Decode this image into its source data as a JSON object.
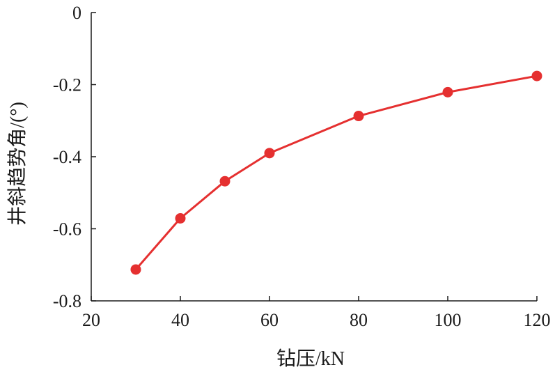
{
  "chart_data": {
    "type": "line",
    "xlabel": "钻压/kN",
    "ylabel": "井斜趋势角/(°)",
    "xlim": [
      20,
      120
    ],
    "ylim": [
      -0.8,
      0
    ],
    "xticks": [
      20,
      40,
      60,
      80,
      100,
      120
    ],
    "yticks": [
      0,
      -0.2,
      -0.4,
      -0.6,
      -0.8
    ],
    "xtick_labels": [
      "20",
      "40",
      "60",
      "80",
      "100",
      "120"
    ],
    "ytick_labels": [
      "0",
      "-0.2",
      "-0.4",
      "-0.6",
      "-0.8"
    ],
    "grid": false,
    "series": [
      {
        "x": [
          30,
          40,
          50,
          60,
          80,
          100,
          120
        ],
        "y": [
          -0.713,
          -0.571,
          -0.468,
          -0.39,
          -0.287,
          -0.221,
          -0.176
        ],
        "color": "#e53030",
        "marker": "circle"
      }
    ]
  }
}
